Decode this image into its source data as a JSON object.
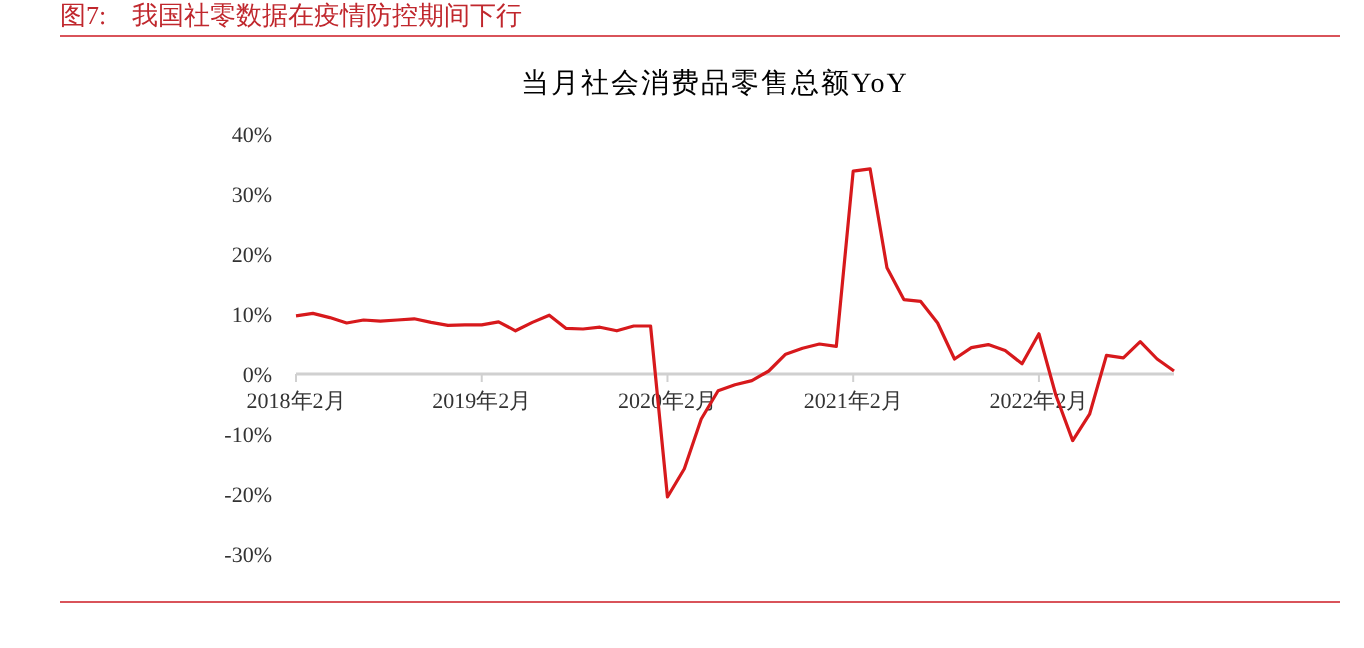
{
  "chart_data": {
    "type": "line",
    "title": "当月社会消费品零售总额YoY",
    "annotations": [
      "图7:    我国社零数据在疫情防控期间下行"
    ],
    "categories": [
      "2018年2月",
      null,
      null,
      null,
      null,
      null,
      null,
      null,
      null,
      null,
      null,
      "2019年2月",
      null,
      null,
      null,
      null,
      null,
      null,
      null,
      null,
      null,
      null,
      "2020年2月",
      null,
      null,
      null,
      null,
      null,
      null,
      null,
      null,
      null,
      null,
      "2021年2月",
      null,
      null,
      null,
      null,
      null,
      null,
      null,
      null,
      null,
      null,
      "2022年2月",
      null,
      null,
      null,
      null,
      null,
      null,
      null,
      null
    ],
    "series": [
      {
        "color": "#d7191c",
        "values": [
          9.7,
          10.1,
          9.4,
          8.5,
          9.0,
          8.8,
          9.0,
          9.2,
          8.6,
          8.1,
          8.2,
          8.2,
          8.7,
          7.2,
          8.6,
          9.8,
          7.6,
          7.5,
          7.8,
          7.2,
          8.0,
          8.0,
          -20.5,
          -15.8,
          -7.5,
          -2.8,
          -1.8,
          -1.1,
          0.5,
          3.3,
          4.3,
          5.0,
          4.6,
          33.8,
          34.2,
          17.7,
          12.4,
          12.1,
          8.5,
          2.5,
          4.4,
          4.9,
          3.9,
          1.7,
          6.7,
          -3.5,
          -11.1,
          -6.7,
          3.1,
          2.7,
          5.4,
          2.5,
          0.5
        ]
      }
    ],
    "ylim": [
      -30,
      40
    ],
    "yticks": [
      {
        "value": -30,
        "label": "-30%"
      },
      {
        "value": -20,
        "label": "-20%"
      },
      {
        "value": -10,
        "label": "-10%"
      },
      {
        "value": 0,
        "label": "0%"
      },
      {
        "value": 10,
        "label": "10%"
      },
      {
        "value": 20,
        "label": "20%"
      },
      {
        "value": 30,
        "label": "30%"
      },
      {
        "value": 40,
        "label": "40%"
      }
    ],
    "grid": false
  }
}
